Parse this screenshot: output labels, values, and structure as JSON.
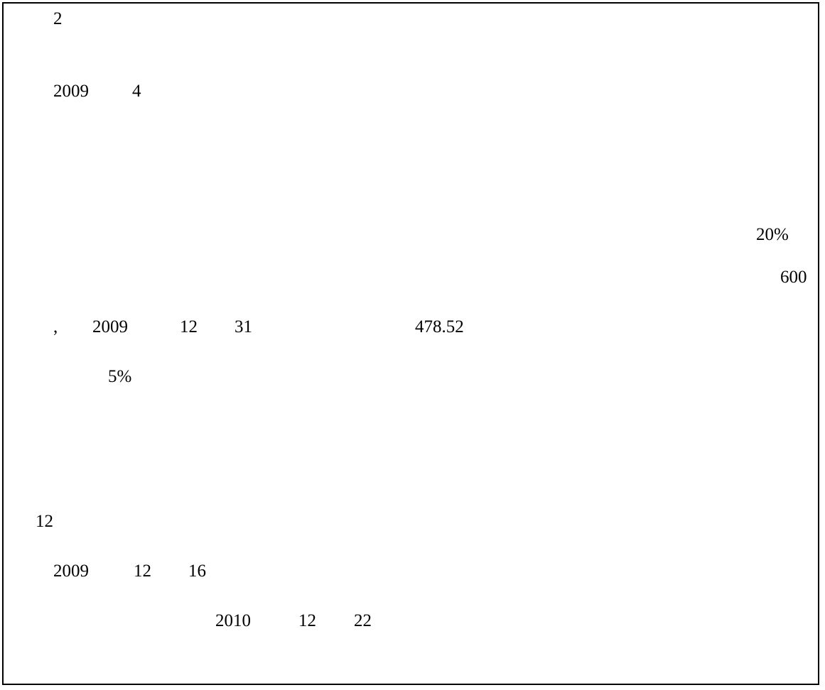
{
  "document": {
    "lines": {
      "l1": [
        "2"
      ],
      "l2": [
        "2009",
        "4"
      ],
      "l3": [
        "20%"
      ],
      "l4": [
        "600"
      ],
      "l5": [
        ",",
        "2009",
        "12",
        "31",
        "478.52"
      ],
      "l6": [
        "5%"
      ],
      "l7": [
        "12"
      ],
      "l8": [
        "2009",
        "12",
        "16"
      ],
      "l9": [
        "2010",
        "12",
        "22"
      ]
    }
  }
}
